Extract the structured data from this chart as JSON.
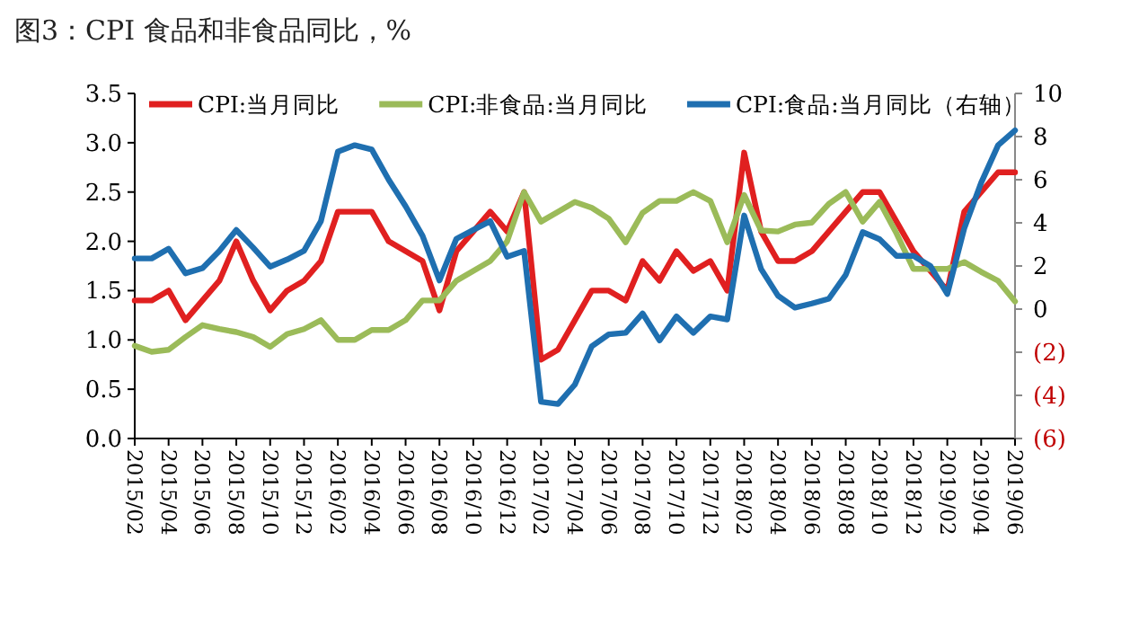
{
  "chart_data": {
    "type": "line",
    "title": "图3：CPI 食品和非食品同比，%",
    "categories": [
      "2015/02",
      null,
      "2015/04",
      null,
      "2015/06",
      null,
      "2015/08",
      null,
      "2015/10",
      null,
      "2015/12",
      null,
      "2016/02",
      null,
      "2016/04",
      null,
      "2016/06",
      null,
      "2016/08",
      null,
      "2016/10",
      null,
      "2016/12",
      null,
      "2017/02",
      null,
      "2017/04",
      null,
      "2017/06",
      null,
      "2017/08",
      null,
      "2017/10",
      null,
      "2017/12",
      null,
      "2018/02",
      null,
      "2018/04",
      null,
      "2018/06",
      null,
      "2018/08",
      null,
      "2018/10",
      null,
      "2018/12",
      null,
      "2019/02",
      null,
      "2019/04",
      null,
      "2019/06"
    ],
    "series": [
      {
        "name": "CPI:当月同比",
        "color": "#e02020",
        "values": [
          1.4,
          1.4,
          1.5,
          1.2,
          1.4,
          1.6,
          2.0,
          1.6,
          1.3,
          1.5,
          1.6,
          1.8,
          2.3,
          2.3,
          2.3,
          2.0,
          1.9,
          1.8,
          1.3,
          1.9,
          2.1,
          2.3,
          2.1,
          2.5,
          0.8,
          0.9,
          1.2,
          1.5,
          1.5,
          1.4,
          1.8,
          1.6,
          1.9,
          1.7,
          1.8,
          1.5,
          2.9,
          2.1,
          1.8,
          1.8,
          1.9,
          2.1,
          2.3,
          2.5,
          2.5,
          2.2,
          1.9,
          1.7,
          1.5,
          2.3,
          2.5,
          2.7,
          2.7
        ]
      },
      {
        "name": "CPI:非食品:当月同比",
        "color": "#9bbb59",
        "values": [
          0.94,
          0.88,
          0.9,
          1.03,
          1.15,
          1.11,
          1.08,
          1.03,
          0.93,
          1.06,
          1.11,
          1.2,
          1.0,
          1.0,
          1.1,
          1.1,
          1.2,
          1.4,
          1.4,
          1.6,
          1.7,
          1.8,
          2.0,
          2.5,
          2.2,
          2.3,
          2.4,
          2.34,
          2.23,
          1.99,
          2.29,
          2.41,
          2.41,
          2.5,
          2.41,
          1.99,
          2.47,
          2.11,
          2.1,
          2.17,
          2.19,
          2.38,
          2.5,
          2.2,
          2.4,
          2.08,
          1.72,
          1.72,
          1.72,
          1.79,
          1.69,
          1.6,
          1.39
        ]
      },
      {
        "name": "CPI:食品:当月同比（右轴）",
        "color": "#1f6fb0",
        "axis": "y2",
        "values": [
          2.35,
          2.35,
          2.8,
          1.66,
          1.9,
          2.7,
          3.67,
          2.85,
          1.97,
          2.3,
          2.7,
          4.08,
          7.3,
          7.6,
          7.4,
          6.0,
          4.77,
          3.4,
          1.33,
          3.26,
          3.67,
          4.08,
          2.43,
          2.7,
          -4.3,
          -4.4,
          -3.5,
          -1.72,
          -1.17,
          -1.1,
          -0.2,
          -1.45,
          -0.34,
          -1.1,
          -0.34,
          -0.48,
          4.34,
          1.86,
          0.62,
          0.07,
          0.26,
          0.48,
          1.59,
          3.57,
          3.24,
          2.47,
          2.47,
          2.0,
          0.7,
          3.74,
          5.86,
          7.6,
          8.29
        ]
      }
    ],
    "ylim": [
      0,
      3.5
    ],
    "yticks": [
      {
        "value": 0,
        "label": "0.0"
      },
      {
        "value": 0.5,
        "label": "0.5"
      },
      {
        "value": 1,
        "label": "1.0"
      },
      {
        "value": 1.5,
        "label": "1.5"
      },
      {
        "value": 2,
        "label": "2.0"
      },
      {
        "value": 2.5,
        "label": "2.5"
      },
      {
        "value": 3,
        "label": "3.0"
      },
      {
        "value": 3.5,
        "label": "3.5"
      }
    ],
    "y2lim": [
      -6,
      10
    ],
    "y2ticks": [
      {
        "value": -6,
        "label": "(6)"
      },
      {
        "value": -4,
        "label": "(4)"
      },
      {
        "value": -2,
        "label": "(2)"
      },
      0,
      2,
      4,
      6,
      8,
      10
    ],
    "legend": "top",
    "grid": false,
    "marker": "none",
    "line_style": "solid"
  }
}
